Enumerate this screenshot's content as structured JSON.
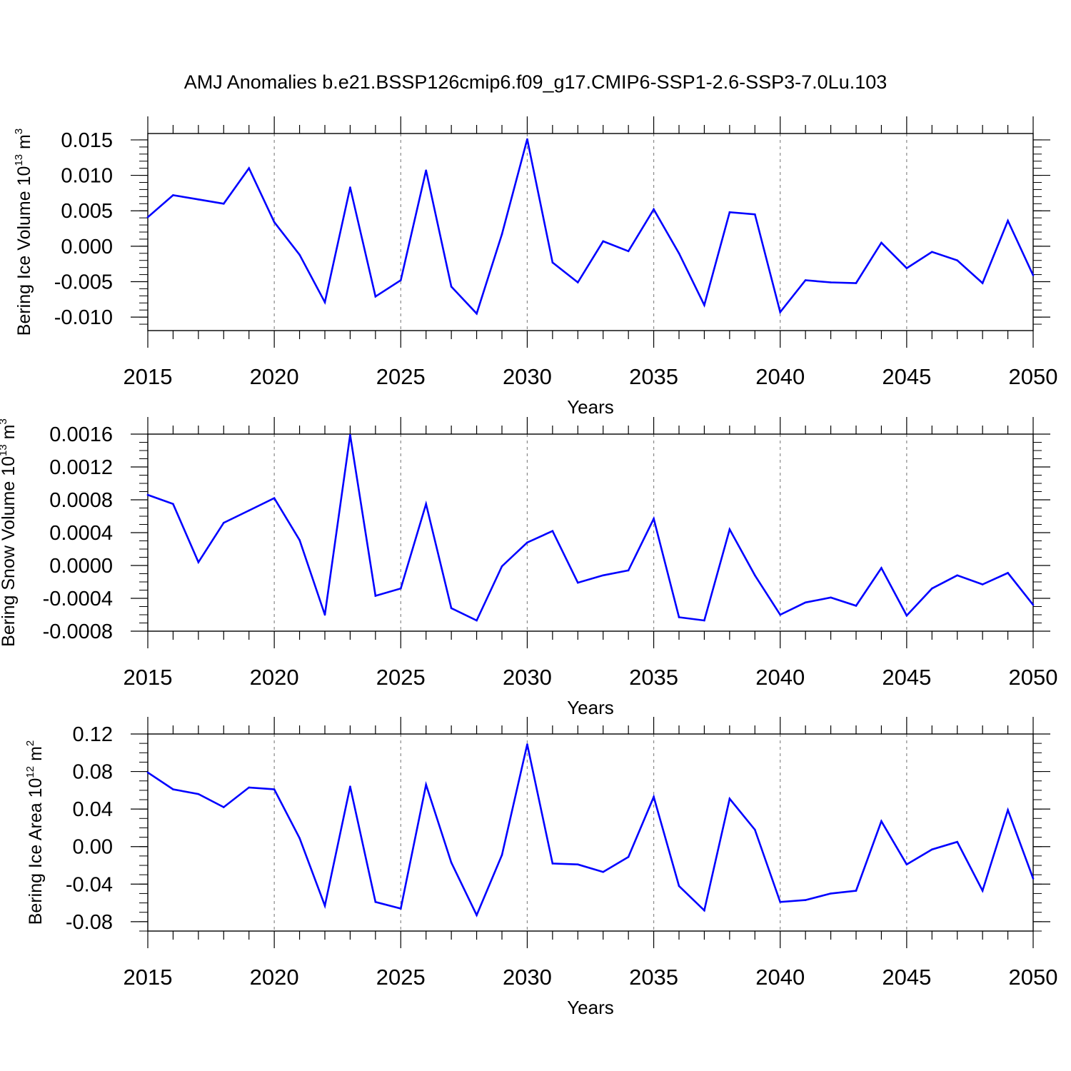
{
  "title": "AMJ Anomalies b.e21.BSSP126cmip6.f09_g17.CMIP6-SSP1-2.6-SSP3-7.0Lu.103",
  "chart_data": [
    {
      "type": "line",
      "ylabel_main": "Bering Ice Volume 10",
      "ylabel_exp": "13",
      "ylabel_unit": " m",
      "ylabel_unit_exp": "3",
      "xlabel": "Years",
      "color": "#0000ff",
      "xlim": [
        2015,
        2050
      ],
      "ylim": [
        -0.0119,
        0.0159
      ],
      "yticks": [
        -0.01,
        -0.005,
        0.0,
        0.005,
        0.01,
        0.015
      ],
      "ytick_labels": [
        "-0.010",
        "-0.005",
        "0.000",
        "0.005",
        "0.010",
        "0.015"
      ],
      "yminor_step": 0.001,
      "xticks": [
        2015,
        2020,
        2025,
        2030,
        2035,
        2040,
        2045,
        2050
      ],
      "xtick_labels": [
        "2015",
        "2020",
        "2025",
        "2030",
        "2035",
        "2040",
        "2045",
        "2050"
      ],
      "x": [
        2015,
        2016,
        2017,
        2018,
        2019,
        2020,
        2021,
        2022,
        2023,
        2024,
        2025,
        2026,
        2027,
        2028,
        2029,
        2030,
        2031,
        2032,
        2033,
        2034,
        2035,
        2036,
        2037,
        2038,
        2039,
        2040,
        2041,
        2042,
        2043,
        2044,
        2045,
        2046,
        2047,
        2048,
        2049,
        2050
      ],
      "values": [
        0.0041,
        0.0072,
        0.0066,
        0.006,
        0.011,
        0.0034,
        -0.0012,
        -0.0079,
        0.0083,
        -0.0071,
        -0.0048,
        0.0107,
        -0.0057,
        -0.0095,
        0.0017,
        0.0151,
        -0.0023,
        -0.0051,
        0.0007,
        -0.0007,
        0.0052,
        -0.001,
        -0.0083,
        0.0048,
        0.0045,
        -0.0093,
        -0.0048,
        -0.0051,
        -0.0052,
        0.0005,
        -0.0031,
        -0.0008,
        -0.002,
        -0.0052,
        0.0036,
        -0.0041
      ]
    },
    {
      "type": "line",
      "ylabel_main": "Bering Snow Volume 10",
      "ylabel_exp": "13",
      "ylabel_unit": " m",
      "ylabel_unit_exp": "3",
      "xlabel": "Years",
      "color": "#0000ff",
      "xlim": [
        2015,
        2050
      ],
      "ylim": [
        -0.0008,
        0.0016
      ],
      "yticks": [
        -0.0008,
        -0.0004,
        0.0,
        0.0004,
        0.0008,
        0.0012,
        0.0016
      ],
      "ytick_labels": [
        "-0.0008",
        "-0.0004",
        "0.0000",
        "0.0004",
        "0.0008",
        "0.0012",
        "0.0016"
      ],
      "yminor_step": 0.0001,
      "xticks": [
        2015,
        2020,
        2025,
        2030,
        2035,
        2040,
        2045,
        2050
      ],
      "xtick_labels": [
        "2015",
        "2020",
        "2025",
        "2030",
        "2035",
        "2040",
        "2045",
        "2050"
      ],
      "x": [
        2015,
        2016,
        2017,
        2018,
        2019,
        2020,
        2021,
        2022,
        2023,
        2024,
        2025,
        2026,
        2027,
        2028,
        2029,
        2030,
        2031,
        2032,
        2033,
        2034,
        2035,
        2036,
        2037,
        2038,
        2039,
        2040,
        2041,
        2042,
        2043,
        2044,
        2045,
        2046,
        2047,
        2048,
        2049,
        2050
      ],
      "values": [
        0.00086,
        0.00075,
        4e-05,
        0.00052,
        0.00067,
        0.00082,
        0.00031,
        -0.0006,
        0.00159,
        -0.00037,
        -0.00028,
        0.00075,
        -0.00052,
        -0.00067,
        -1e-05,
        0.00028,
        0.00042,
        -0.00021,
        -0.00012,
        -6e-05,
        0.00057,
        -0.00063,
        -0.00067,
        0.00044,
        -0.00012,
        -0.0006,
        -0.00045,
        -0.00039,
        -0.00049,
        -3e-05,
        -0.00061,
        -0.00028,
        -0.00012,
        -0.00023,
        -9e-05,
        -0.00048
      ]
    },
    {
      "type": "line",
      "ylabel_main": "Bering Ice Area 10",
      "ylabel_exp": "12",
      "ylabel_unit": " m",
      "ylabel_unit_exp": "2",
      "xlabel": "Years",
      "color": "#0000ff",
      "xlim": [
        2015,
        2050
      ],
      "ylim": [
        -0.09,
        0.12
      ],
      "yticks": [
        -0.08,
        -0.04,
        0.0,
        0.04,
        0.08,
        0.12
      ],
      "ytick_labels": [
        "-0.08",
        "-0.04",
        "0.00",
        "0.04",
        "0.08",
        "0.12"
      ],
      "yminor_step": 0.01,
      "xticks": [
        2015,
        2020,
        2025,
        2030,
        2035,
        2040,
        2045,
        2050
      ],
      "xtick_labels": [
        "2015",
        "2020",
        "2025",
        "2030",
        "2035",
        "2040",
        "2045",
        "2050"
      ],
      "x": [
        2015,
        2016,
        2017,
        2018,
        2019,
        2020,
        2021,
        2022,
        2023,
        2024,
        2025,
        2026,
        2027,
        2028,
        2029,
        2030,
        2031,
        2032,
        2033,
        2034,
        2035,
        2036,
        2037,
        2038,
        2039,
        2040,
        2041,
        2042,
        2043,
        2044,
        2045,
        2046,
        2047,
        2048,
        2049,
        2050
      ],
      "values": [
        0.079,
        0.061,
        0.056,
        0.042,
        0.063,
        0.061,
        0.009,
        -0.063,
        0.064,
        -0.059,
        -0.066,
        0.066,
        -0.017,
        -0.073,
        -0.009,
        0.109,
        -0.018,
        -0.019,
        -0.027,
        -0.011,
        0.053,
        -0.042,
        -0.068,
        0.051,
        0.018,
        -0.059,
        -0.057,
        -0.05,
        -0.047,
        0.027,
        -0.019,
        -0.003,
        0.005,
        -0.047,
        0.039,
        -0.034
      ]
    }
  ]
}
